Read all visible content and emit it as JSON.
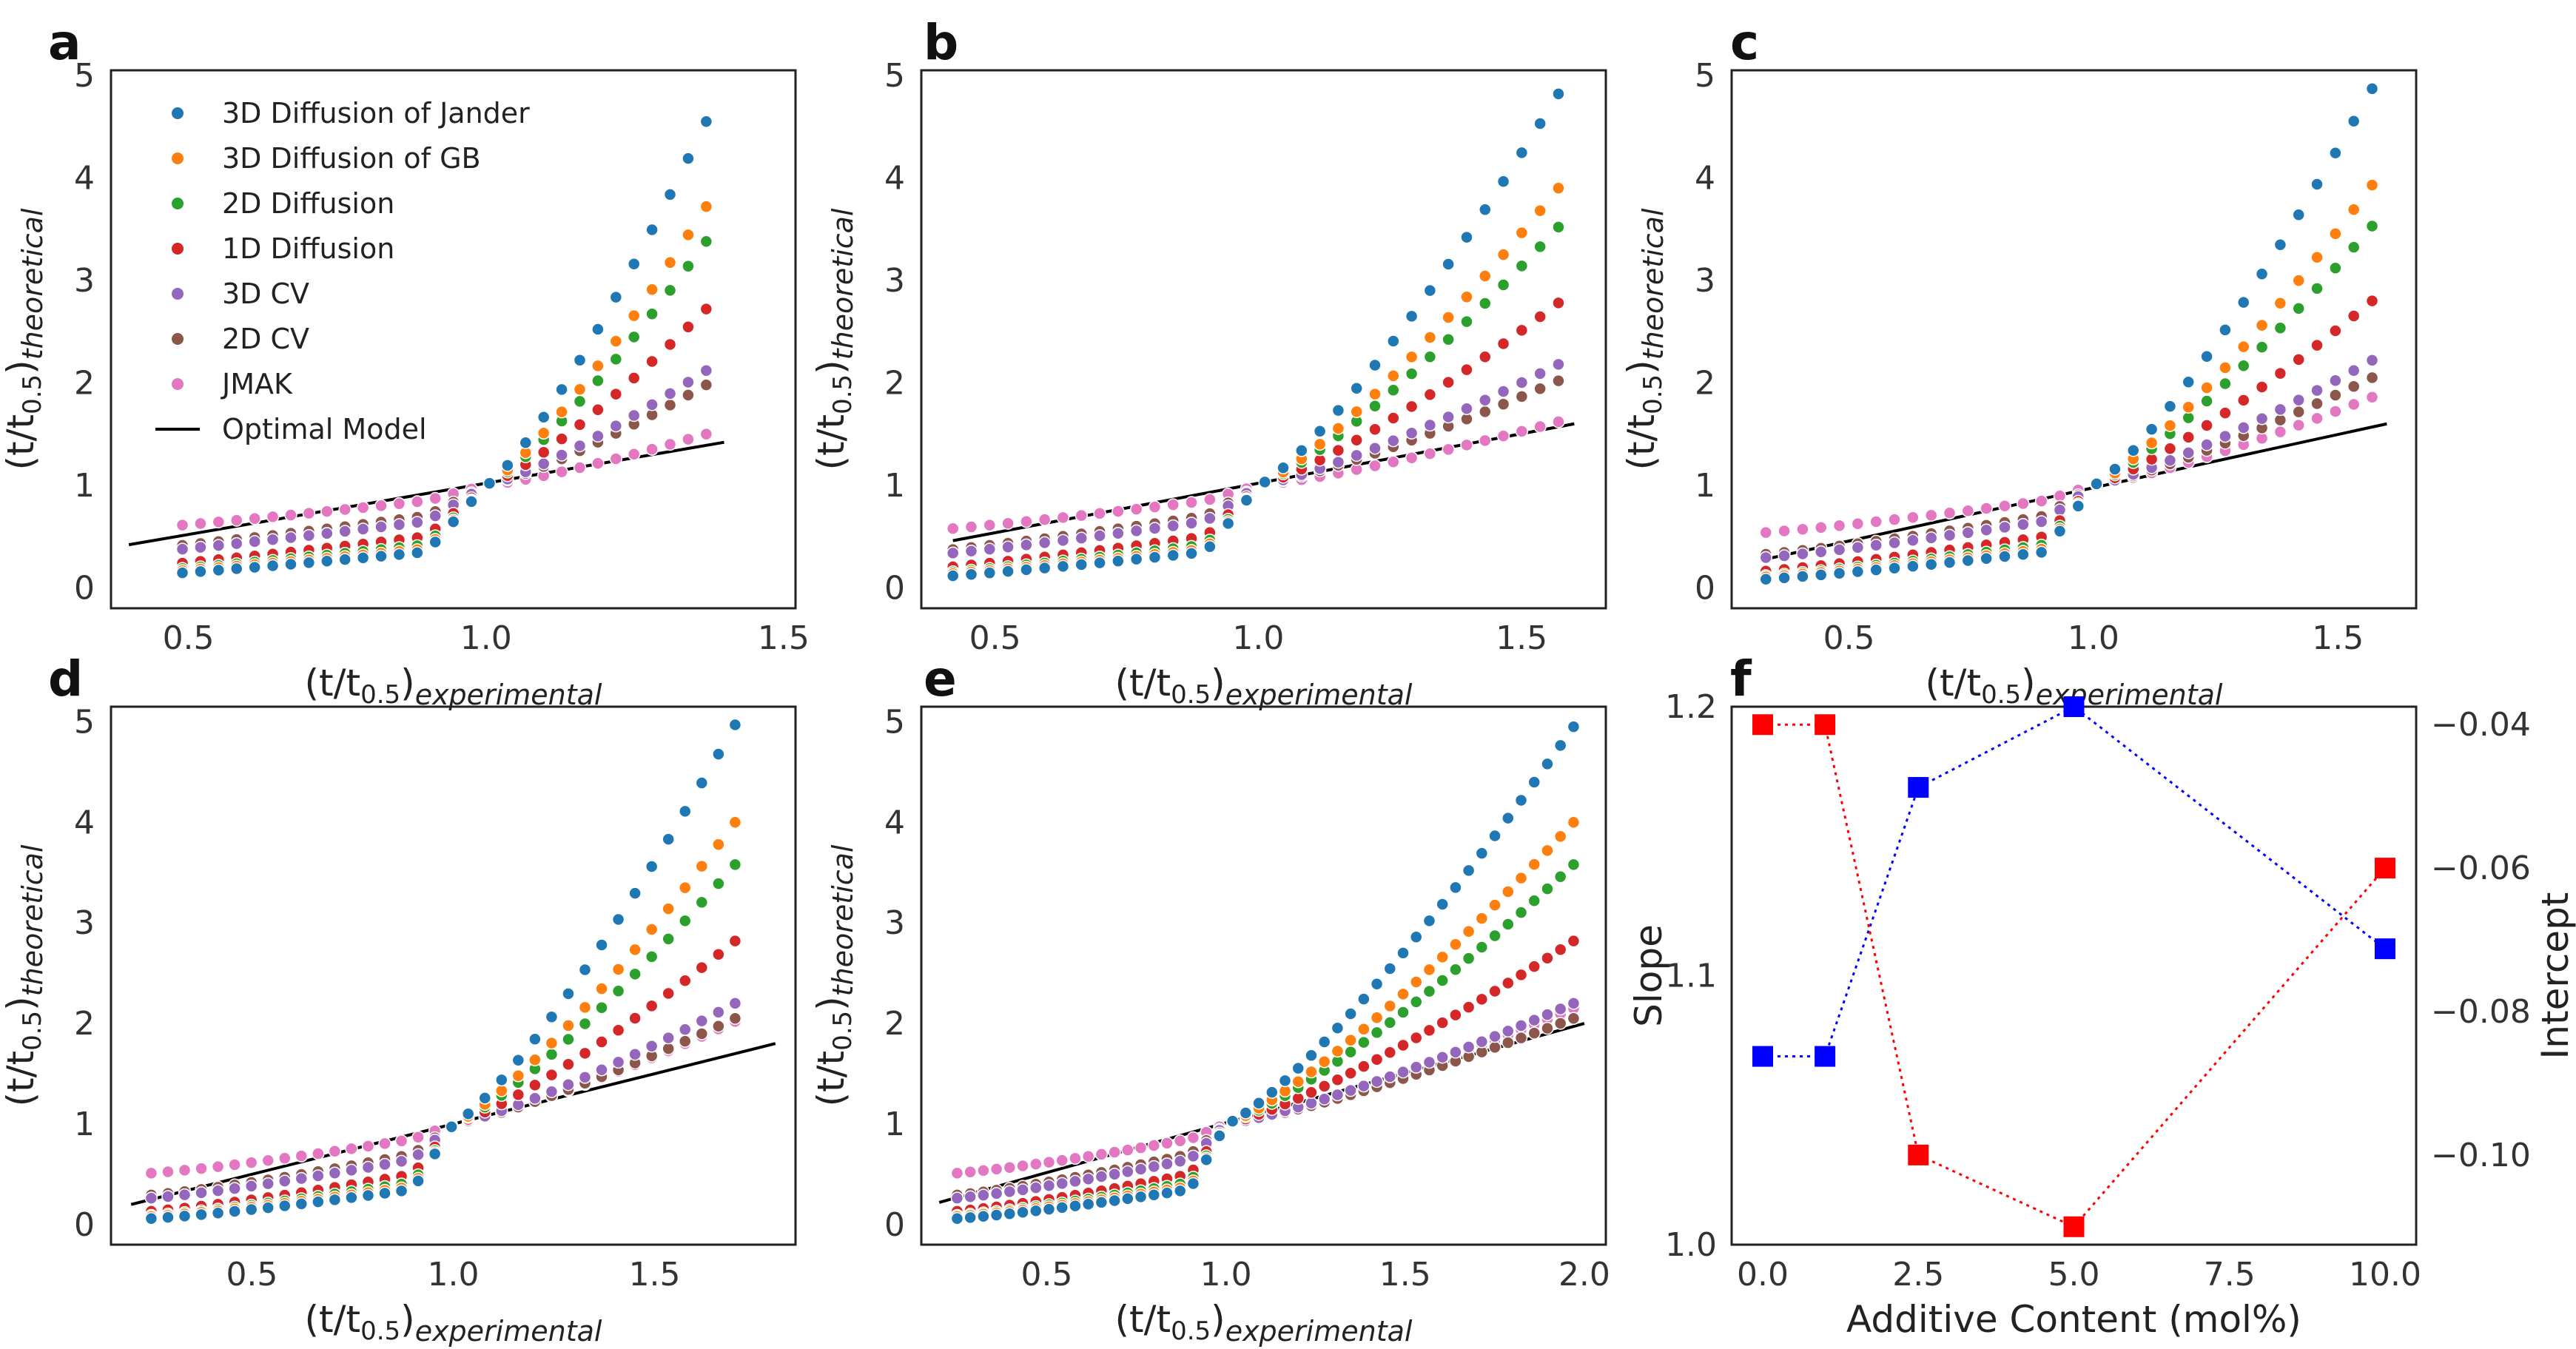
{
  "colors": {
    "3D Diffusion of Jander": "#1f77b4",
    "3D Diffusion of GB": "#ff7f0e",
    "2D Diffusion": "#2ca02c",
    "1D Diffusion": "#d62728",
    "3D CV": "#9467bd",
    "2D CV": "#8c564b",
    "JMAK": "#e377c2",
    "Optimal Model": "#000000",
    "slope": "#0000ff",
    "intercept": "#ff0000"
  },
  "labels": {
    "ylabel_base": "(t/t",
    "ylabel_sub": "0.5",
    "ylabel_close": ")",
    "ylabel_theoretical": "theoretical",
    "xlabel_experimental": "experimental",
    "f_xlabel": "Additive Content (mol%)",
    "f_ylabel_left": "Slope",
    "f_ylabel_right": "Intercept"
  },
  "legend": [
    "3D Diffusion of Jander",
    "3D Diffusion of GB",
    "2D Diffusion",
    "1D Diffusion",
    "3D CV",
    "2D CV",
    "JMAK",
    "Optimal Model"
  ],
  "chart_data": [
    {
      "panel": "a",
      "type": "scatter",
      "xlim": [
        0.37,
        1.52
      ],
      "ylim": [
        -0.2,
        5.05
      ],
      "xticks": [
        "0.5",
        "1.0",
        "1.5"
      ],
      "xtick_values": [
        0.5,
        1.0,
        1.5
      ],
      "yticks": [
        "0",
        "1",
        "2",
        "3",
        "4",
        "5"
      ],
      "ytick_values": [
        0,
        1,
        2,
        3,
        4,
        5
      ],
      "x_range": [
        0.49,
        1.37
      ],
      "n_points": 30,
      "series_end_values": {
        "3D Diffusion of Jander": 4.55,
        "3D Diffusion of GB": 3.72,
        "2D Diffusion": 3.38,
        "1D Diffusion": 2.72,
        "3D CV": 2.12,
        "2D CV": 1.98,
        "JMAK": 1.5
      },
      "optimal_line": {
        "x": [
          0.4,
          1.4
        ],
        "y": [
          0.42,
          1.42
        ]
      },
      "show_legend": true,
      "legend_location": "upper-left"
    },
    {
      "panel": "b",
      "type": "scatter",
      "xlim": [
        0.36,
        1.66
      ],
      "ylim": [
        -0.2,
        5.05
      ],
      "xticks": [
        "0.5",
        "1.0",
        "1.5"
      ],
      "xtick_values": [
        0.5,
        1.0,
        1.5
      ],
      "yticks": [
        "0",
        "1",
        "2",
        "3",
        "4",
        "5"
      ],
      "ytick_values": [
        0,
        1,
        2,
        3,
        4,
        5
      ],
      "x_range": [
        0.42,
        1.57
      ],
      "n_points": 34,
      "series_end_values": {
        "3D Diffusion of Jander": 4.82,
        "3D Diffusion of GB": 3.9,
        "2D Diffusion": 3.52,
        "1D Diffusion": 2.78,
        "3D CV": 2.18,
        "2D CV": 2.02,
        "JMAK": 1.62
      },
      "optimal_line": {
        "x": [
          0.42,
          1.6
        ],
        "y": [
          0.46,
          1.6
        ]
      }
    },
    {
      "panel": "c",
      "type": "scatter",
      "xlim": [
        0.26,
        1.66
      ],
      "ylim": [
        -0.2,
        5.05
      ],
      "xticks": [
        "0.5",
        "1.0",
        "1.5"
      ],
      "xtick_values": [
        0.5,
        1.0,
        1.5
      ],
      "yticks": [
        "0",
        "1",
        "2",
        "3",
        "4",
        "5"
      ],
      "ytick_values": [
        0,
        1,
        2,
        3,
        4,
        5
      ],
      "x_range": [
        0.33,
        1.57
      ],
      "n_points": 34,
      "series_end_values": {
        "3D Diffusion of Jander": 4.87,
        "3D Diffusion of GB": 3.93,
        "2D Diffusion": 3.53,
        "1D Diffusion": 2.8,
        "3D CV": 2.22,
        "2D CV": 2.05,
        "JMAK": 1.86
      },
      "optimal_line": {
        "x": [
          0.33,
          1.6
        ],
        "y": [
          0.28,
          1.6
        ]
      }
    },
    {
      "panel": "d",
      "type": "scatter",
      "xlim": [
        0.15,
        1.85
      ],
      "ylim": [
        -0.2,
        5.15
      ],
      "xticks": [
        "0.5",
        "1.0",
        "1.5"
      ],
      "xtick_values": [
        0.5,
        1.0,
        1.5
      ],
      "yticks": [
        "0",
        "1",
        "2",
        "3",
        "4",
        "5"
      ],
      "ytick_values": [
        0,
        1,
        2,
        3,
        4,
        5
      ],
      "x_range": [
        0.25,
        1.7
      ],
      "n_points": 36,
      "series_end_values": {
        "3D Diffusion of Jander": 4.97,
        "3D Diffusion of GB": 4.0,
        "2D Diffusion": 3.58,
        "1D Diffusion": 2.82,
        "3D CV": 2.2,
        "2D CV": 2.05,
        "JMAK": 2.02
      },
      "optimal_line": {
        "x": [
          0.2,
          1.8
        ],
        "y": [
          0.2,
          1.8
        ]
      }
    },
    {
      "panel": "e",
      "type": "scatter",
      "xlim": [
        0.15,
        2.06
      ],
      "ylim": [
        -0.2,
        5.15
      ],
      "xticks": [
        "0.5",
        "1.0",
        "1.5",
        "2.0"
      ],
      "xtick_values": [
        0.5,
        1.0,
        1.5,
        2.0
      ],
      "yticks": [
        "0",
        "1",
        "2",
        "3",
        "4",
        "5"
      ],
      "ytick_values": [
        0,
        1,
        2,
        3,
        4,
        5
      ],
      "x_range": [
        0.25,
        1.97
      ],
      "n_points": 48,
      "series_end_values": {
        "3D Diffusion of Jander": 4.95,
        "3D Diffusion of GB": 4.0,
        "2D Diffusion": 3.58,
        "1D Diffusion": 2.82,
        "3D CV": 2.2,
        "2D CV": 2.05,
        "JMAK": 2.15
      },
      "optimal_line": {
        "x": [
          0.2,
          2.0
        ],
        "y": [
          0.22,
          2.0
        ]
      }
    },
    {
      "panel": "f",
      "type": "line",
      "x": [
        0.0,
        1.0,
        2.5,
        5.0,
        10.0
      ],
      "xlim": [
        -0.5,
        10.5
      ],
      "xticks": [
        "0.0",
        "2.5",
        "5.0",
        "7.5",
        "10.0"
      ],
      "xtick_values": [
        0,
        2.5,
        5.0,
        7.5,
        10.0
      ],
      "xlabel": "Additive Content (mol%)",
      "series": [
        {
          "name": "Slope",
          "axis": "left",
          "values": [
            1.07,
            1.07,
            1.17,
            1.2,
            1.11
          ]
        },
        {
          "name": "Intercept",
          "axis": "right",
          "values": [
            -0.04,
            -0.04,
            -0.1,
            -0.11,
            -0.06
          ]
        }
      ],
      "ylim_left": [
        1.0,
        1.2
      ],
      "yticks_left": [
        "1.0",
        "1.1",
        "1.2"
      ],
      "ytick_values_left": [
        1.0,
        1.1,
        1.2
      ],
      "ylim_right": [
        -0.1125,
        -0.0375
      ],
      "yticks_right": [
        "−0.04",
        "−0.06",
        "−0.08",
        "−0.10"
      ],
      "ytick_values_right": [
        -0.04,
        -0.06,
        -0.08,
        -0.1
      ],
      "ylabel_left": "Slope",
      "ylabel_right": "Intercept"
    }
  ]
}
